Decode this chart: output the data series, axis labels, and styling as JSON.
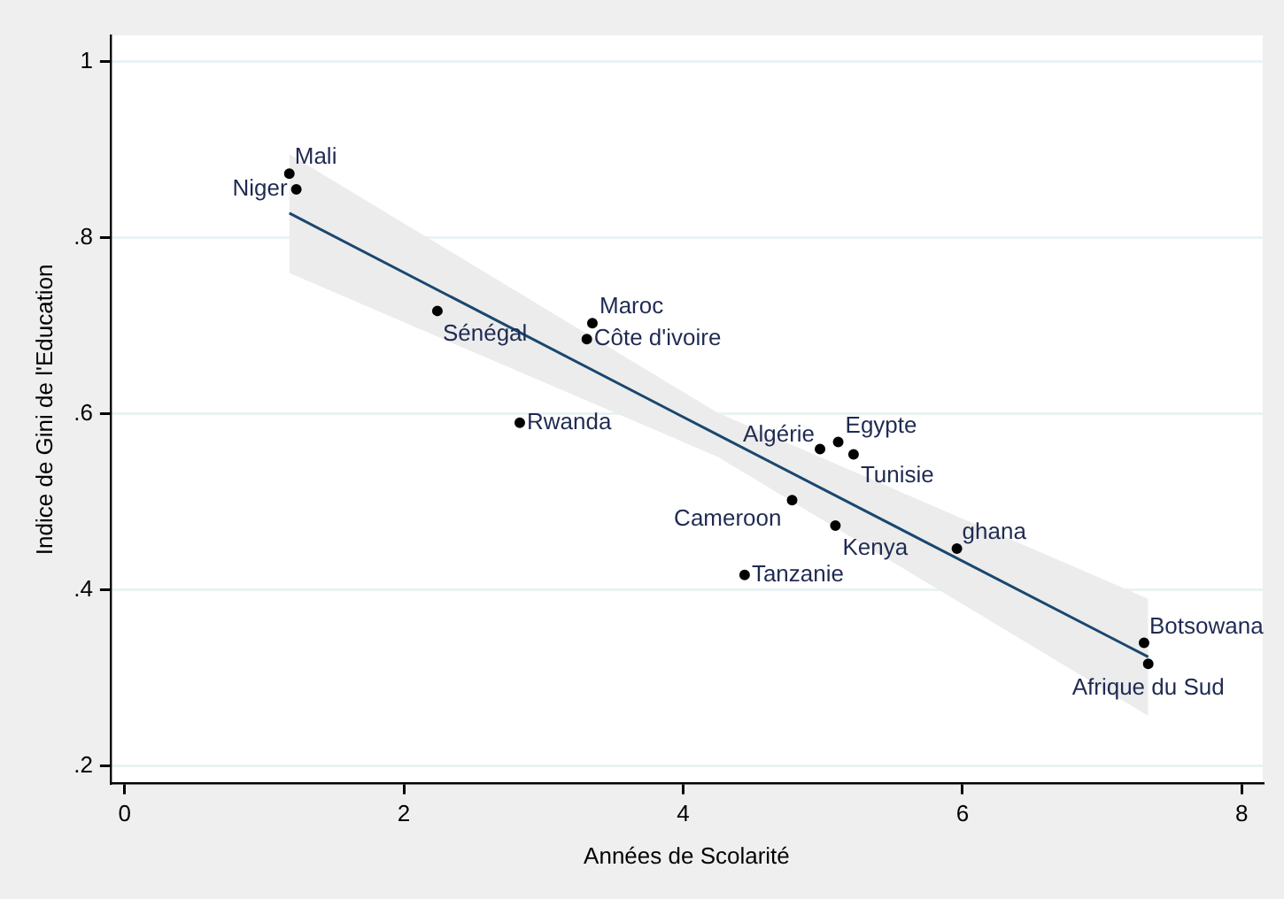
{
  "chart_data": {
    "type": "scatter",
    "xlabel": "Années de Scolarité",
    "ylabel": "Indice de Gini de l'Education",
    "xlim": [
      -0.1,
      8.15
    ],
    "ylim": [
      0.18,
      1.03
    ],
    "xticks": [
      0,
      2,
      4,
      6,
      8
    ],
    "yticks": [
      {
        "value": 0.2,
        "label": ".2"
      },
      {
        "value": 0.4,
        "label": ".4"
      },
      {
        "value": 0.6,
        "label": ".6"
      },
      {
        "value": 0.8,
        "label": ".8"
      },
      1
    ],
    "grid": "y",
    "legend": false,
    "series": [
      {
        "marker": "circle",
        "color": "#000000",
        "x": [
          1.18,
          1.23,
          2.24,
          3.35,
          3.31,
          2.83,
          4.98,
          5.11,
          5.22,
          4.78,
          5.09,
          4.44,
          5.96,
          7.3,
          7.33
        ],
        "values": [
          0.873,
          0.855,
          0.717,
          0.703,
          0.685,
          0.59,
          0.56,
          0.568,
          0.554,
          0.502,
          0.473,
          0.417,
          0.447,
          0.34,
          0.316
        ]
      },
      {
        "type": "line",
        "marker": "none",
        "color": "#1a476f",
        "x": [
          1.18,
          4.25,
          7.33
        ],
        "values": [
          0.828,
          0.576,
          0.324
        ],
        "lower": [
          0.76,
          0.551,
          0.257
        ],
        "upper": [
          0.895,
          0.601,
          0.39
        ]
      }
    ],
    "annotations": [
      {
        "text": "Mali",
        "x": 1.18,
        "y": 0.873
      },
      {
        "text": "Niger",
        "x": 1.23,
        "y": 0.855
      },
      {
        "text": "Sénégal",
        "x": 2.24,
        "y": 0.717
      },
      {
        "text": "Maroc",
        "x": 3.35,
        "y": 0.703
      },
      {
        "text": "Côte d'ivoire",
        "x": 3.31,
        "y": 0.685
      },
      {
        "text": "Rwanda",
        "x": 2.83,
        "y": 0.59
      },
      {
        "text": "Algérie",
        "x": 4.98,
        "y": 0.56
      },
      {
        "text": "Egypte",
        "x": 5.11,
        "y": 0.568
      },
      {
        "text": "Tunisie",
        "x": 5.22,
        "y": 0.554
      },
      {
        "text": "Cameroon",
        "x": 4.78,
        "y": 0.502
      },
      {
        "text": "Kenya",
        "x": 5.09,
        "y": 0.473
      },
      {
        "text": "Tanzanie",
        "x": 4.44,
        "y": 0.417
      },
      {
        "text": "ghana",
        "x": 5.96,
        "y": 0.447
      },
      {
        "text": "Botsowana",
        "x": 7.3,
        "y": 0.34
      },
      {
        "text": "Afrique du Sud",
        "x": 7.33,
        "y": 0.316
      }
    ]
  }
}
